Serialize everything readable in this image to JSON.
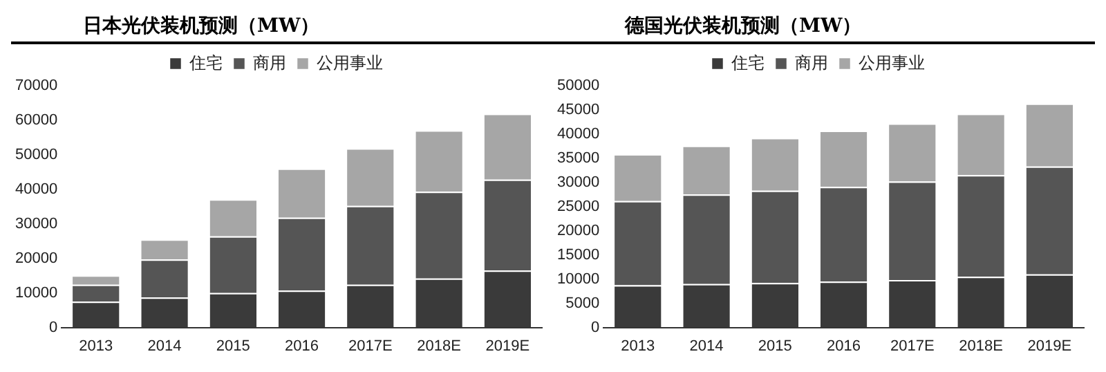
{
  "chart_data": [
    {
      "type": "bar",
      "title": "日本光伏装机预测（MW）",
      "stacked": true,
      "legend": "top",
      "categories": [
        "2013",
        "2014",
        "2015",
        "2016",
        "2017E",
        "2018E",
        "2019E"
      ],
      "ylim": [
        0,
        70000
      ],
      "yticks": [
        0,
        10000,
        20000,
        30000,
        40000,
        50000,
        60000,
        70000
      ],
      "series": [
        {
          "name": "住宅",
          "color": "#3a3a3a",
          "values": [
            7500,
            8700,
            10000,
            10700,
            12400,
            14200,
            16500
          ]
        },
        {
          "name": "商用",
          "color": "#555555",
          "values": [
            4900,
            11000,
            16400,
            21100,
            22800,
            25100,
            26300
          ]
        },
        {
          "name": "公用事业",
          "color": "#a6a6a6",
          "values": [
            2700,
            5800,
            10700,
            14200,
            16700,
            17800,
            19100
          ]
        }
      ]
    },
    {
      "type": "bar",
      "title": "德国光伏装机预测（MW）",
      "stacked": true,
      "legend": "top",
      "categories": [
        "2013",
        "2014",
        "2015",
        "2016",
        "2017E",
        "2018E",
        "2019E"
      ],
      "ylim": [
        0,
        50000
      ],
      "yticks": [
        0,
        5000,
        10000,
        15000,
        20000,
        25000,
        30000,
        35000,
        40000,
        45000,
        50000
      ],
      "series": [
        {
          "name": "住宅",
          "color": "#3a3a3a",
          "values": [
            8750,
            9000,
            9200,
            9500,
            9800,
            10500,
            11000
          ]
        },
        {
          "name": "商用",
          "color": "#555555",
          "values": [
            17400,
            18500,
            19100,
            19600,
            20400,
            21000,
            22300
          ]
        },
        {
          "name": "公用事业",
          "color": "#a6a6a6",
          "values": [
            9700,
            10100,
            10900,
            11600,
            12000,
            12700,
            13000
          ]
        }
      ]
    }
  ]
}
